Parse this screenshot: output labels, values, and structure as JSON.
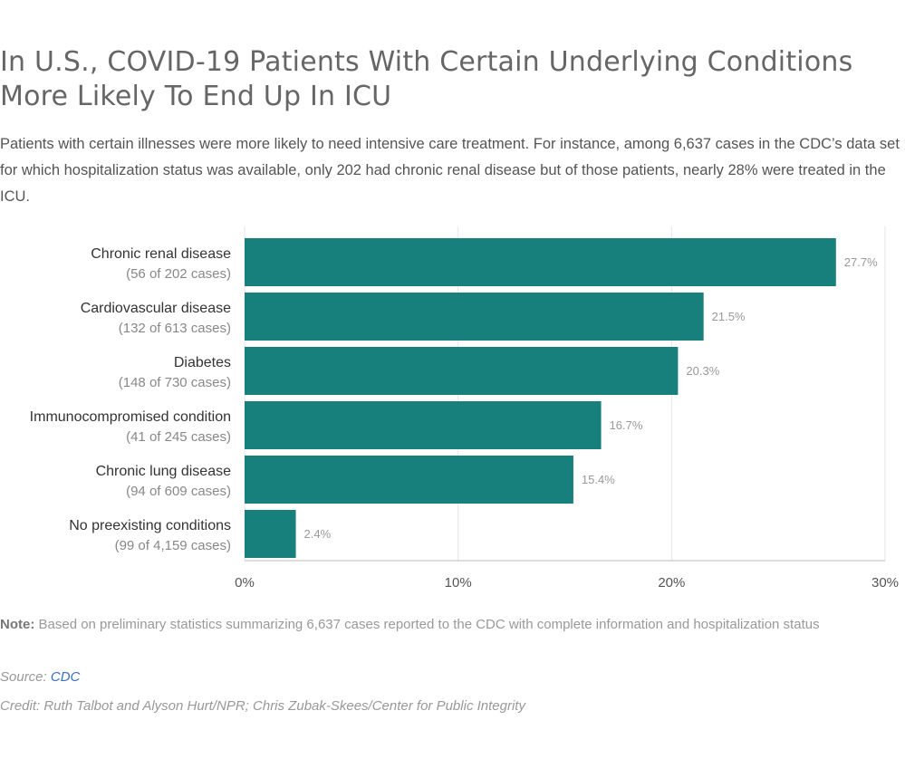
{
  "chart_data": {
    "type": "bar",
    "orientation": "horizontal",
    "title": "In U.S., COVID-19 Patients With Certain Underlying Conditions More Likely To End Up In ICU",
    "subtitle": "Patients with certain illnesses were more likely to need intensive care treatment. For instance, among 6,637 cases in the CDC’s data set for which hospitalization status was available, only 202 had chronic renal disease but of those patients, nearly 28% were treated in the ICU.",
    "categories": [
      "Chronic renal disease",
      "Cardiovascular disease",
      "Diabetes",
      "Immunocompromised condition",
      "Chronic lung disease",
      "No preexisting conditions"
    ],
    "category_notes": [
      "(56 of 202 cases)",
      "(132 of 613 cases)",
      "(148 of 730 cases)",
      "(41 of 245 cases)",
      "(94 of 609 cases)",
      "(99 of 4,159 cases)"
    ],
    "values": [
      27.7,
      21.5,
      20.3,
      16.7,
      15.4,
      2.4
    ],
    "value_labels": [
      "27.7%",
      "21.5%",
      "20.3%",
      "16.7%",
      "15.4%",
      "2.4%"
    ],
    "xlim": [
      0,
      30
    ],
    "x_ticks": [
      0,
      10,
      20,
      30
    ],
    "x_tick_labels": [
      "0%",
      "10%",
      "20%",
      "30%"
    ],
    "grid": true,
    "bar_color": "#17807c"
  },
  "note": {
    "label": "Note:",
    "text": "Based on preliminary statistics summarizing 6,637 cases reported to the CDC with complete information and hospitalization status"
  },
  "source": {
    "label": "Source:",
    "link_text": "CDC",
    "link_color": "#3b6fc0"
  },
  "credit": "Credit: Ruth Talbot and Alyson Hurt/NPR; Chris Zubak-Skees/Center for Public Integrity"
}
